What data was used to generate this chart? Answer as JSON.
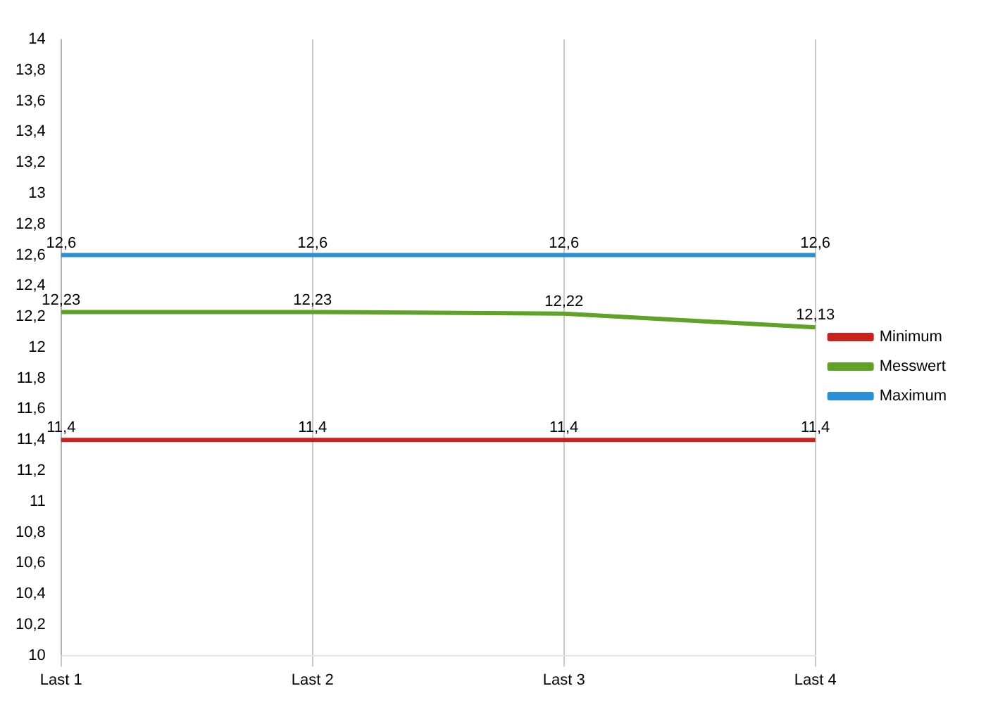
{
  "chart_data": {
    "type": "line",
    "categories": [
      "Last 1",
      "Last 2",
      "Last 3",
      "Last 4"
    ],
    "series": [
      {
        "name": "Minimum",
        "color": "#c9211e",
        "values": [
          11.4,
          11.4,
          11.4,
          11.4
        ],
        "value_labels": [
          "11,4",
          "11,4",
          "11,4",
          "11,4"
        ]
      },
      {
        "name": "Messwert",
        "color": "#5ea226",
        "values": [
          12.23,
          12.23,
          12.22,
          12.13
        ],
        "value_labels": [
          "12,23",
          "12,23",
          "12,22",
          "12,13"
        ]
      },
      {
        "name": "Maximum",
        "color": "#2a8fd6",
        "values": [
          12.6,
          12.6,
          12.6,
          12.6
        ],
        "value_labels": [
          "12,6",
          "12,6",
          "12,6",
          "12,6"
        ]
      }
    ],
    "ylim": [
      10,
      14
    ],
    "yticks": [
      {
        "value": 10,
        "label": "10"
      },
      {
        "value": 10.2,
        "label": "10,2"
      },
      {
        "value": 10.4,
        "label": "10,4"
      },
      {
        "value": 10.6,
        "label": "10,6"
      },
      {
        "value": 10.8,
        "label": "10,8"
      },
      {
        "value": 11,
        "label": "11"
      },
      {
        "value": 11.2,
        "label": "11,2"
      },
      {
        "value": 11.4,
        "label": "11,4"
      },
      {
        "value": 11.6,
        "label": "11,6"
      },
      {
        "value": 11.8,
        "label": "11,8"
      },
      {
        "value": 12,
        "label": "12"
      },
      {
        "value": 12.2,
        "label": "12,2"
      },
      {
        "value": 12.4,
        "label": "12,4"
      },
      {
        "value": 12.6,
        "label": "12,6"
      },
      {
        "value": 12.8,
        "label": "12,8"
      },
      {
        "value": 13,
        "label": "13"
      },
      {
        "value": 13.2,
        "label": "13,2"
      },
      {
        "value": 13.4,
        "label": "13,4"
      },
      {
        "value": 13.6,
        "label": "13,6"
      },
      {
        "value": 13.8,
        "label": "13,8"
      },
      {
        "value": 14,
        "label": "14"
      }
    ],
    "grid": "x",
    "legend": "right",
    "marker": "none",
    "line_style": "solid"
  }
}
